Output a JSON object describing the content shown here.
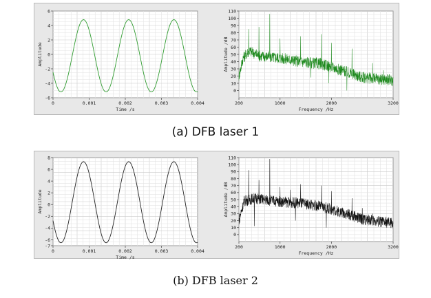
{
  "captions": {
    "a": "(a) DFB laser 1",
    "b": "(b) DFB laser 2"
  },
  "chart_data": [
    {
      "id": "a-time",
      "type": "line",
      "xlabel": "Time /s",
      "ylabel": "Amplitude",
      "xlim": [
        0,
        0.004
      ],
      "ylim": [
        -6,
        6
      ],
      "xticks": [
        0,
        0.001,
        0.002,
        0.003,
        0.004
      ],
      "xtick_labels": [
        "0",
        "0.001",
        "0.002",
        "0.003",
        "0.004"
      ],
      "yticks": [
        -6,
        -4,
        -2,
        0,
        2,
        4,
        6
      ],
      "ytick_labels": [
        "-6",
        "-4",
        "-2",
        "0",
        "2",
        "4",
        "6"
      ],
      "grid": true,
      "color": "#2e9b2e",
      "signal": {
        "amplitude": 5.0,
        "offset": -0.2,
        "frequency_hz": 800,
        "samples": 400
      }
    },
    {
      "id": "a-spectrum",
      "type": "line",
      "xlabel": "Frequency /Hz",
      "ylabel": "Amplitude /dB",
      "xlim": [
        200,
        3200
      ],
      "ylim": [
        -10,
        110
      ],
      "xticks": [
        200,
        1000,
        2000,
        3200
      ],
      "xtick_labels": [
        "200",
        "1000",
        "2000",
        "3200"
      ],
      "yticks": [
        0,
        10,
        20,
        30,
        40,
        50,
        60,
        70,
        80,
        90,
        100,
        110
      ],
      "ytick_labels": [
        "0",
        "10",
        "20",
        "30",
        "40",
        "50",
        "60",
        "70",
        "80",
        "90",
        "100",
        "110"
      ],
      "grid": true,
      "color": "#1f8a1f",
      "envelope": [
        [
          200,
          20
        ],
        [
          280,
          45
        ],
        [
          400,
          55
        ],
        [
          600,
          48
        ],
        [
          1000,
          45
        ],
        [
          1400,
          40
        ],
        [
          1800,
          37
        ],
        [
          2200,
          28
        ],
        [
          2600,
          18
        ],
        [
          3200,
          14
        ]
      ],
      "peaks": [
        [
          390,
          85
        ],
        [
          590,
          88
        ],
        [
          800,
          106
        ],
        [
          1000,
          72
        ],
        [
          1400,
          75
        ],
        [
          1800,
          78
        ],
        [
          2000,
          66
        ],
        [
          2400,
          58
        ],
        [
          2800,
          38
        ],
        [
          3010,
          28
        ]
      ],
      "dips": [
        [
          1600,
          18
        ],
        [
          1950,
          10
        ],
        [
          2300,
          0
        ]
      ]
    },
    {
      "id": "b-time",
      "type": "line",
      "xlabel": "Time /s",
      "ylabel": "Amplitude",
      "xlim": [
        0,
        0.004
      ],
      "ylim": [
        -7,
        8
      ],
      "xticks": [
        0,
        0.001,
        0.002,
        0.003,
        0.004
      ],
      "xtick_labels": [
        "0",
        "0.001",
        "0.002",
        "0.003",
        "0.004"
      ],
      "yticks": [
        -7,
        -6,
        -4,
        -2,
        0,
        2,
        4,
        6,
        8
      ],
      "ytick_labels": [
        "-7",
        "-6",
        "-4",
        "-2",
        "0",
        "2",
        "4",
        "6",
        "8"
      ],
      "grid": true,
      "color": "#222222",
      "signal": {
        "amplitude": 6.9,
        "offset": 0.4,
        "frequency_hz": 800,
        "samples": 400
      }
    },
    {
      "id": "b-spectrum",
      "type": "line",
      "xlabel": "Frequency /Hz",
      "ylabel": "Amplitude /dB",
      "xlim": [
        200,
        3200
      ],
      "ylim": [
        -10,
        110
      ],
      "xticks": [
        200,
        1000,
        2000,
        3200
      ],
      "xtick_labels": [
        "200",
        "1000",
        "2000",
        "3200"
      ],
      "yticks": [
        0,
        10,
        20,
        30,
        40,
        50,
        60,
        70,
        80,
        90,
        100,
        110
      ],
      "ytick_labels": [
        "0",
        "10",
        "20",
        "30",
        "40",
        "50",
        "60",
        "70",
        "80",
        "90",
        "100",
        "110"
      ],
      "grid": true,
      "color": "#111111",
      "envelope": [
        [
          200,
          20
        ],
        [
          300,
          48
        ],
        [
          500,
          52
        ],
        [
          1000,
          47
        ],
        [
          1400,
          45
        ],
        [
          1800,
          40
        ],
        [
          2200,
          32
        ],
        [
          2600,
          22
        ],
        [
          3200,
          16
        ]
      ],
      "peaks": [
        [
          390,
          92
        ],
        [
          590,
          78
        ],
        [
          800,
          108
        ],
        [
          1000,
          68
        ],
        [
          1200,
          64
        ],
        [
          1400,
          72
        ],
        [
          1800,
          70
        ],
        [
          2000,
          62
        ],
        [
          2400,
          52
        ],
        [
          2600,
          38
        ],
        [
          2800,
          30
        ]
      ],
      "dips": [
        [
          500,
          12
        ],
        [
          1300,
          20
        ],
        [
          1900,
          10
        ]
      ]
    }
  ]
}
